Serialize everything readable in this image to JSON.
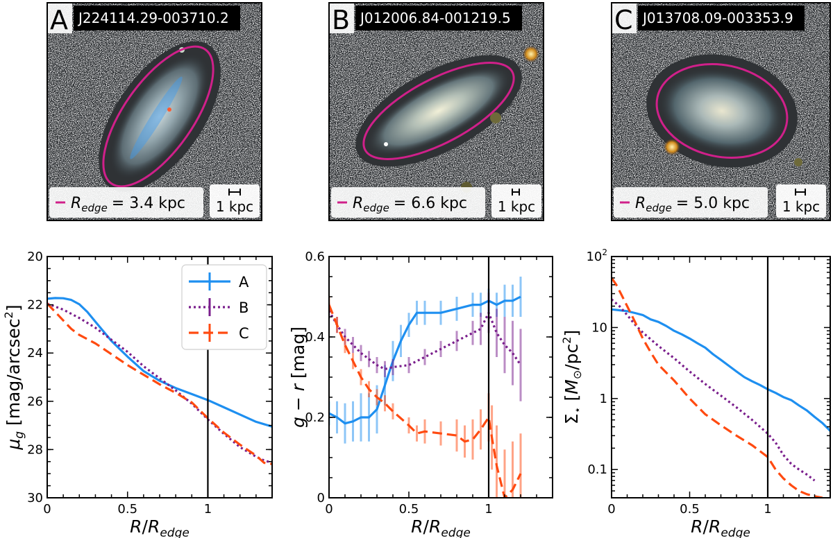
{
  "panels": [
    {
      "letter": "A",
      "object_id": "J224114.29-003710.2",
      "redge_label": "R",
      "redge_sub": "edge",
      "redge_value": "= 3.4 kpc",
      "scalebar_label": "1 kpc"
    },
    {
      "letter": "B",
      "object_id": "J012006.84-001219.5",
      "redge_label": "R",
      "redge_sub": "edge",
      "redge_value": "= 6.6 kpc",
      "scalebar_label": "1 kpc"
    },
    {
      "letter": "C",
      "object_id": "J013708.09-003353.9",
      "redge_label": "R",
      "redge_sub": "edge",
      "redge_value": "= 5.0 kpc",
      "scalebar_label": "1 kpc"
    }
  ],
  "colors": {
    "A": "#1e8ff0",
    "B": "#7a1e8c",
    "C": "#ff4a10",
    "ellipse": "#d0208a",
    "edge_line": "#000000"
  },
  "chart_data": [
    {
      "type": "line",
      "xlabel": "R/R_edge",
      "ylabel": "μ_g [mag/arcsec²]",
      "xlim": [
        0,
        1.4
      ],
      "ylim": [
        30,
        20
      ],
      "x_ticks": [
        0,
        0.5,
        1
      ],
      "x_tick_labels": [
        "0",
        "0.5",
        "1"
      ],
      "y_ticks": [
        20,
        22,
        24,
        26,
        28,
        30
      ],
      "y_tick_labels": [
        "20",
        "22",
        "24",
        "26",
        "28",
        "30"
      ],
      "vline": 1.0,
      "legend": {
        "position": "top-right",
        "entries": [
          "A",
          "B",
          "C"
        ]
      },
      "series": [
        {
          "name": "A",
          "style": "solid",
          "x": [
            0,
            0.05,
            0.1,
            0.15,
            0.2,
            0.25,
            0.3,
            0.4,
            0.5,
            0.6,
            0.7,
            0.8,
            0.9,
            1.0,
            1.1,
            1.2,
            1.3,
            1.4
          ],
          "y": [
            21.75,
            21.72,
            21.73,
            21.8,
            21.98,
            22.3,
            22.7,
            23.5,
            24.15,
            24.75,
            25.15,
            25.45,
            25.7,
            25.95,
            26.25,
            26.55,
            26.85,
            27.05
          ]
        },
        {
          "name": "B",
          "style": "dotted",
          "x": [
            0,
            0.1,
            0.2,
            0.3,
            0.4,
            0.5,
            0.6,
            0.7,
            0.8,
            0.9,
            1.0,
            1.1,
            1.2,
            1.3,
            1.35,
            1.4
          ],
          "y": [
            21.95,
            22.2,
            22.55,
            22.95,
            23.45,
            23.95,
            24.55,
            25.05,
            25.55,
            26.1,
            26.75,
            27.35,
            27.9,
            28.3,
            28.45,
            28.55
          ]
        },
        {
          "name": "C",
          "style": "dashed",
          "x": [
            0,
            0.05,
            0.1,
            0.15,
            0.2,
            0.3,
            0.4,
            0.5,
            0.6,
            0.7,
            0.8,
            0.9,
            1.0,
            1.1,
            1.2,
            1.3,
            1.35,
            1.4
          ],
          "y": [
            21.95,
            22.3,
            22.65,
            23.0,
            23.25,
            23.6,
            24.05,
            24.5,
            24.9,
            25.3,
            25.65,
            26.05,
            26.7,
            27.3,
            27.8,
            28.25,
            28.55,
            28.6
          ]
        }
      ]
    },
    {
      "type": "line",
      "xlabel": "R/R_edge",
      "ylabel": "g − r [mag]",
      "xlim": [
        0,
        1.4
      ],
      "ylim": [
        0,
        0.6
      ],
      "x_ticks": [
        0,
        0.5,
        1
      ],
      "x_tick_labels": [
        "0",
        "0.5",
        "1"
      ],
      "y_ticks": [
        0,
        0.2,
        0.4,
        0.6
      ],
      "y_tick_labels": [
        "0",
        "0.2",
        "0.4",
        "0.6"
      ],
      "vline": 1.0,
      "series": [
        {
          "name": "A",
          "style": "solid",
          "x": [
            0,
            0.05,
            0.1,
            0.15,
            0.2,
            0.25,
            0.3,
            0.35,
            0.4,
            0.45,
            0.5,
            0.55,
            0.6,
            0.7,
            0.8,
            0.9,
            0.95,
            1.0,
            1.05,
            1.1,
            1.15,
            1.2
          ],
          "y": [
            0.21,
            0.2,
            0.185,
            0.19,
            0.2,
            0.2,
            0.22,
            0.28,
            0.34,
            0.39,
            0.43,
            0.46,
            0.46,
            0.46,
            0.47,
            0.48,
            0.48,
            0.49,
            0.48,
            0.49,
            0.49,
            0.5
          ],
          "err": [
            0.03,
            0.04,
            0.05,
            0.05,
            0.06,
            0.06,
            0.06,
            0.05,
            0.05,
            0.04,
            0.03,
            0.03,
            0.03,
            0.03,
            0.03,
            0.03,
            0.03,
            0.03,
            0.03,
            0.04,
            0.04,
            0.05
          ]
        },
        {
          "name": "B",
          "style": "dotted",
          "x": [
            0,
            0.05,
            0.1,
            0.15,
            0.2,
            0.25,
            0.3,
            0.35,
            0.4,
            0.5,
            0.6,
            0.7,
            0.8,
            0.9,
            0.95,
            1.0,
            1.05,
            1.1,
            1.15,
            1.2
          ],
          "y": [
            0.465,
            0.43,
            0.4,
            0.38,
            0.36,
            0.345,
            0.33,
            0.32,
            0.325,
            0.33,
            0.35,
            0.37,
            0.39,
            0.41,
            0.42,
            0.46,
            0.41,
            0.38,
            0.36,
            0.33
          ],
          "err": [
            0.02,
            0.02,
            0.02,
            0.02,
            0.02,
            0.02,
            0.02,
            0.02,
            0.02,
            0.02,
            0.02,
            0.02,
            0.025,
            0.03,
            0.04,
            0.05,
            0.06,
            0.07,
            0.08,
            0.09
          ]
        },
        {
          "name": "C",
          "style": "dashed",
          "x": [
            0,
            0.05,
            0.1,
            0.15,
            0.2,
            0.25,
            0.3,
            0.35,
            0.4,
            0.5,
            0.55,
            0.6,
            0.7,
            0.8,
            0.85,
            0.9,
            0.95,
            1.0,
            1.02,
            1.05,
            1.1,
            1.15,
            1.2
          ],
          "y": [
            0.48,
            0.43,
            0.38,
            0.34,
            0.3,
            0.27,
            0.25,
            0.235,
            0.215,
            0.18,
            0.16,
            0.165,
            0.16,
            0.155,
            0.14,
            0.145,
            0.17,
            0.2,
            0.15,
            0.08,
            0.0,
            0.02,
            0.06
          ],
          "err": [
            0.02,
            0.02,
            0.02,
            0.02,
            0.02,
            0.02,
            0.02,
            0.02,
            0.02,
            0.02,
            0.02,
            0.03,
            0.03,
            0.04,
            0.04,
            0.05,
            0.05,
            0.06,
            0.08,
            0.1,
            0.12,
            0.12,
            0.1
          ]
        }
      ]
    },
    {
      "type": "line",
      "xlabel": "R/R_edge",
      "ylabel": "Σ⋆ [M⊙/pc²]",
      "yscale": "log",
      "xlim": [
        0,
        1.4
      ],
      "ylim": [
        0.04,
        100
      ],
      "x_ticks": [
        0,
        0.5,
        1
      ],
      "x_tick_labels": [
        "0",
        "0.5",
        "1"
      ],
      "y_ticks": [
        0.1,
        1,
        10,
        100
      ],
      "y_tick_labels": [
        "0.1",
        "1",
        "10",
        "10²"
      ],
      "vline": 1.0,
      "series": [
        {
          "name": "A",
          "style": "solid",
          "x": [
            0,
            0.05,
            0.1,
            0.15,
            0.2,
            0.25,
            0.3,
            0.35,
            0.4,
            0.45,
            0.5,
            0.55,
            0.6,
            0.65,
            0.7,
            0.75,
            0.8,
            0.85,
            0.9,
            0.95,
            1.0,
            1.05,
            1.1,
            1.15,
            1.2,
            1.25,
            1.3,
            1.35,
            1.4
          ],
          "y": [
            18,
            17.5,
            17,
            16,
            15,
            13,
            12,
            10.5,
            9,
            8,
            7,
            6,
            5.2,
            4.2,
            3.5,
            2.9,
            2.4,
            2.0,
            1.75,
            1.55,
            1.35,
            1.2,
            1.05,
            0.95,
            0.8,
            0.68,
            0.55,
            0.45,
            0.35
          ]
        },
        {
          "name": "B",
          "style": "dotted",
          "x": [
            0,
            0.05,
            0.1,
            0.15,
            0.2,
            0.3,
            0.4,
            0.5,
            0.6,
            0.7,
            0.8,
            0.9,
            1.0,
            1.05,
            1.1,
            1.15,
            1.2,
            1.25,
            1.3
          ],
          "y": [
            25,
            20,
            15,
            11,
            8.5,
            5.5,
            3.7,
            2.4,
            1.6,
            1.1,
            0.75,
            0.5,
            0.32,
            0.24,
            0.16,
            0.12,
            0.1,
            0.085,
            0.07
          ]
        },
        {
          "name": "C",
          "style": "dashed",
          "x": [
            0,
            0.03,
            0.06,
            0.1,
            0.15,
            0.2,
            0.25,
            0.3,
            0.4,
            0.5,
            0.6,
            0.7,
            0.8,
            0.9,
            1.0,
            1.05,
            1.1,
            1.15,
            1.2,
            1.25,
            1.3,
            1.35
          ],
          "y": [
            50,
            40,
            30,
            20,
            12,
            7,
            4.5,
            3,
            1.8,
            1.0,
            0.6,
            0.42,
            0.3,
            0.22,
            0.15,
            0.1,
            0.075,
            0.06,
            0.05,
            0.045,
            0.042,
            0.04
          ]
        }
      ]
    }
  ]
}
